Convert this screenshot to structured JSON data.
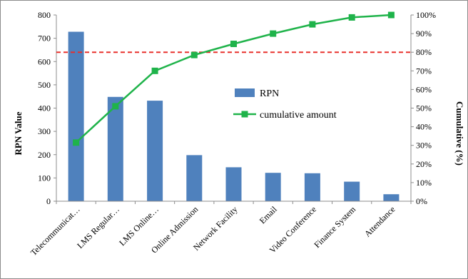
{
  "chart_data": {
    "type": "bar",
    "title": "",
    "xlabel": "",
    "ylabel": "RPN Value",
    "y2label": "Cumulative (%)",
    "ylim": [
      0,
      800
    ],
    "y2lim": [
      0,
      100
    ],
    "yticks": [
      "0",
      "100",
      "200",
      "300",
      "400",
      "500",
      "600",
      "700",
      "800"
    ],
    "y2ticks": [
      "0%",
      "10%",
      "20%",
      "30%",
      "40%",
      "50%",
      "60%",
      "70%",
      "80%",
      "90%",
      "100%"
    ],
    "categories": [
      "Telecommunicat…",
      "LMS Regular…",
      "LMS Online…",
      "Online Admission",
      "Network Facility",
      "Email",
      "Video Conference",
      "Finance System",
      "Attendance"
    ],
    "series": [
      {
        "name": "RPN",
        "type": "bar",
        "axis": "left",
        "color": "#4f81bd",
        "values": [
          728,
          448,
          432,
          198,
          146,
          122,
          120,
          84,
          30
        ]
      },
      {
        "name": "cumulative amount",
        "type": "line",
        "axis": "right",
        "color": "#1fb34a",
        "values": [
          31.5,
          51,
          70,
          78.5,
          84.5,
          90,
          95,
          98.7,
          100
        ]
      }
    ],
    "reference_line": {
      "axis": "right",
      "value": 80,
      "color": "#e8302c",
      "style": "dashed"
    },
    "grid": false,
    "legend_position": "center-right"
  }
}
